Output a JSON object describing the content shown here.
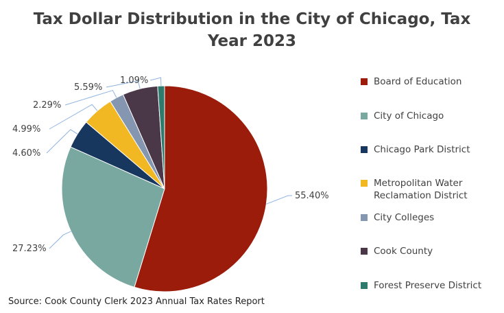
{
  "chart_data": {
    "type": "pie",
    "title": "Tax Dollar Distribution in the City of Chicago, Tax Year 2023",
    "title_lines": [
      "Tax Dollar Distribution in the City of Chicago, Tax",
      "Year 2023"
    ],
    "slices": [
      {
        "name": "Board of Education",
        "value": 55.4,
        "label": "55.40%",
        "color": "#9B1C0B"
      },
      {
        "name": "City of Chicago",
        "value": 27.23,
        "label": "27.23%",
        "color": "#78A8A0"
      },
      {
        "name": "Chicago Park District",
        "value": 4.6,
        "label": "4.60%",
        "color": "#17375E"
      },
      {
        "name": "Metropolitan Water Reclamation District",
        "value": 4.99,
        "label": "4.99%",
        "color": "#F2B824"
      },
      {
        "name": "City Colleges",
        "value": 2.29,
        "label": "2.29%",
        "color": "#8496B0"
      },
      {
        "name": "Cook County",
        "value": 5.59,
        "label": "5.59%",
        "color": "#4A3748"
      },
      {
        "name": "Forest Preserve District",
        "value": 1.09,
        "label": "1.09%",
        "color": "#2E7A6C"
      }
    ],
    "legend_position": "right",
    "source": "Source: Cook County Clerk 2023 Annual Tax Rates Report"
  }
}
